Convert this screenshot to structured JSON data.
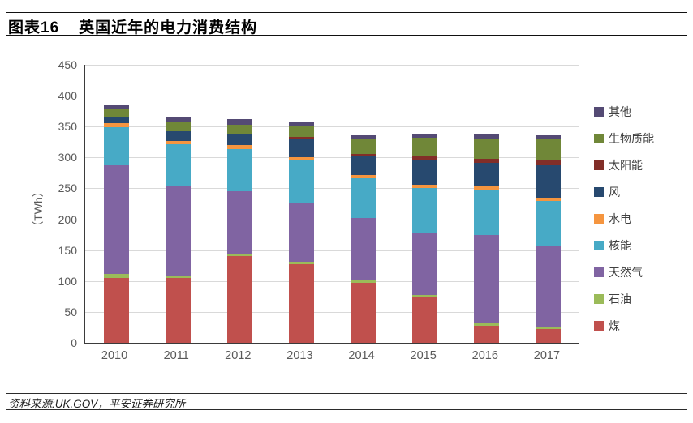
{
  "header": {
    "figure_label": "图表16",
    "title": "英国近年的电力消费结构"
  },
  "footer": {
    "source": "资料来源:UK.GOV，平安证券研究所"
  },
  "chart_data": {
    "type": "bar",
    "stacked": true,
    "title": "英国近年的电力消费结构",
    "xlabel": "",
    "ylabel": "（TWh）",
    "ylim": [
      0,
      450
    ],
    "ytick_step": 50,
    "grid": "horizontal",
    "legend_position": "right",
    "axis_color": "#3b3b3b",
    "gridline_color": "#d9d9d9",
    "tick_label_color": "#595959",
    "categories": [
      "2010",
      "2011",
      "2012",
      "2013",
      "2014",
      "2015",
      "2016",
      "2017"
    ],
    "series": [
      {
        "name": "煤",
        "color": "#c0504d",
        "values": [
          105,
          105,
          140,
          127,
          97,
          74,
          28,
          22
        ]
      },
      {
        "name": "石油",
        "color": "#9bbb59",
        "values": [
          7,
          4,
          4,
          4,
          4,
          3,
          3,
          3
        ]
      },
      {
        "name": "天然气",
        "color": "#8064a2",
        "values": [
          175,
          146,
          101,
          95,
          101,
          100,
          144,
          133
        ]
      },
      {
        "name": "核能",
        "color": "#47aac6",
        "values": [
          62,
          66,
          69,
          70,
          64,
          73,
          73,
          71
        ]
      },
      {
        "name": "水电",
        "color": "#f5953f",
        "values": [
          6,
          6,
          6,
          5,
          6,
          6,
          6,
          6
        ]
      },
      {
        "name": "风",
        "color": "#27496f",
        "values": [
          11,
          15,
          18,
          30,
          30,
          39,
          37,
          52
        ]
      },
      {
        "name": "太阳能",
        "color": "#822e28",
        "values": [
          0,
          0,
          1,
          2,
          4,
          7,
          7,
          9
        ]
      },
      {
        "name": "生物质能",
        "color": "#708738",
        "values": [
          13,
          16,
          14,
          18,
          24,
          30,
          33,
          33
        ]
      },
      {
        "name": "其他",
        "color": "#544a74",
        "values": [
          5,
          8,
          9,
          6,
          7,
          6,
          7,
          7
        ]
      }
    ],
    "totals": [
      384,
      366,
      362,
      357,
      337,
      338,
      338,
      336
    ]
  }
}
